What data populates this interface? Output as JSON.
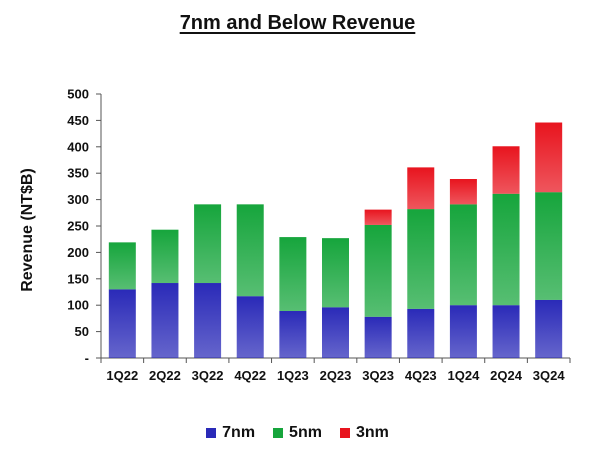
{
  "chart_data": {
    "type": "bar",
    "stacked": true,
    "title": "7nm and Below Revenue",
    "ylabel": "Revenue (NT$B)",
    "xlabel": "",
    "ylim": [
      0,
      500
    ],
    "yticks": [
      "-",
      "50",
      "100",
      "150",
      "200",
      "250",
      "300",
      "350",
      "400",
      "450",
      "500"
    ],
    "categories": [
      "1Q22",
      "2Q22",
      "3Q22",
      "4Q22",
      "1Q23",
      "2Q23",
      "3Q23",
      "4Q23",
      "1Q24",
      "2Q24",
      "3Q24"
    ],
    "series": [
      {
        "name": "7nm",
        "color": "#2a2ab8",
        "values": [
          130,
          142,
          142,
          117,
          89,
          96,
          78,
          93,
          100,
          100,
          110
        ]
      },
      {
        "name": "5nm",
        "color": "#16a53c",
        "values": [
          89,
          101,
          149,
          174,
          140,
          131,
          174,
          189,
          191,
          211,
          204
        ]
      },
      {
        "name": "3nm",
        "color": "#e8141e",
        "values": [
          0,
          0,
          0,
          0,
          0,
          0,
          29,
          79,
          48,
          90,
          132
        ]
      }
    ],
    "grid": false,
    "legend_position": "bottom"
  }
}
